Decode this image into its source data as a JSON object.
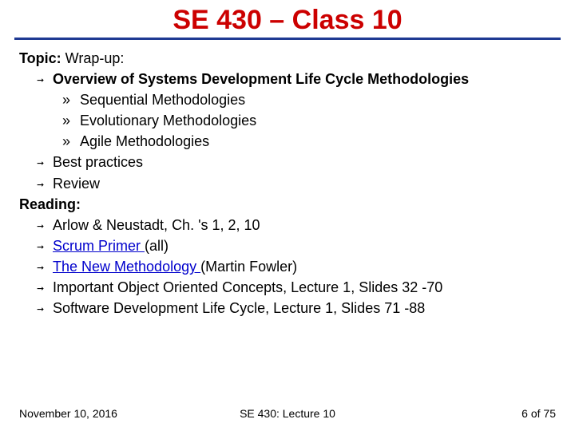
{
  "colors": {
    "title": "#cc0000",
    "rule": "#1f3a93",
    "link": "#0000cc",
    "text": "#000000",
    "background": "#ffffff"
  },
  "title": "SE 430 – Class 10",
  "topic_label": "Topic:",
  "topic_text": " Wrap-up:",
  "topic_items": [
    {
      "text": "Overview of Systems Development Life Cycle Methodologies",
      "bold": true,
      "sub": [
        "Sequential Methodologies",
        "Evolutionary Methodologies",
        "Agile Methodologies"
      ]
    },
    {
      "text": "Best practices"
    },
    {
      "text": "Review"
    }
  ],
  "reading_label": "Reading:",
  "reading_items": [
    {
      "text": "Arlow & Neustadt, Ch. 's 1, 2, 10"
    },
    {
      "link": "Scrum Primer ",
      "after": "(all)"
    },
    {
      "link": "The New Methodology ",
      "after": "(Martin Fowler)"
    },
    {
      "text": "Important Object Oriented Concepts, Lecture 1, Slides 32 -70"
    },
    {
      "text": "Software Development Life Cycle, Lecture 1, Slides 71 -88"
    }
  ],
  "footer": {
    "left": "November 10, 2016",
    "center": "SE 430: Lecture 10",
    "right": "6 of 75"
  }
}
